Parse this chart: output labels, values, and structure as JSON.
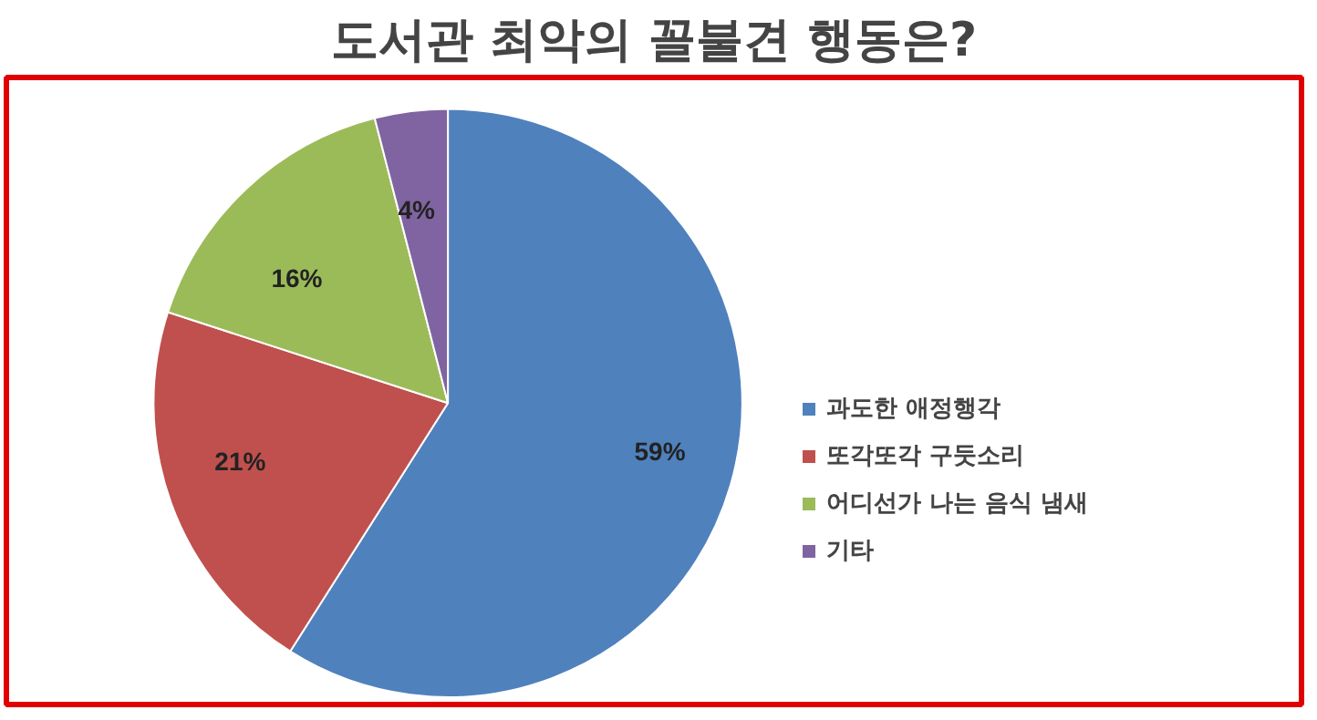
{
  "chart_data": {
    "type": "pie",
    "title": "도서관 최악의 꼴불견 행동은?",
    "categories": [
      "과도한 애정행각",
      "또각또각 구둣소리",
      "어디선가 나는 음식 냄새",
      "기타"
    ],
    "values": [
      59,
      21,
      16,
      4
    ],
    "colors": [
      "#4f81bd",
      "#c0504d",
      "#9bbb59",
      "#8064a2"
    ],
    "value_labels": [
      "59%",
      "21%",
      "16%",
      "4%"
    ],
    "legend": "right"
  }
}
